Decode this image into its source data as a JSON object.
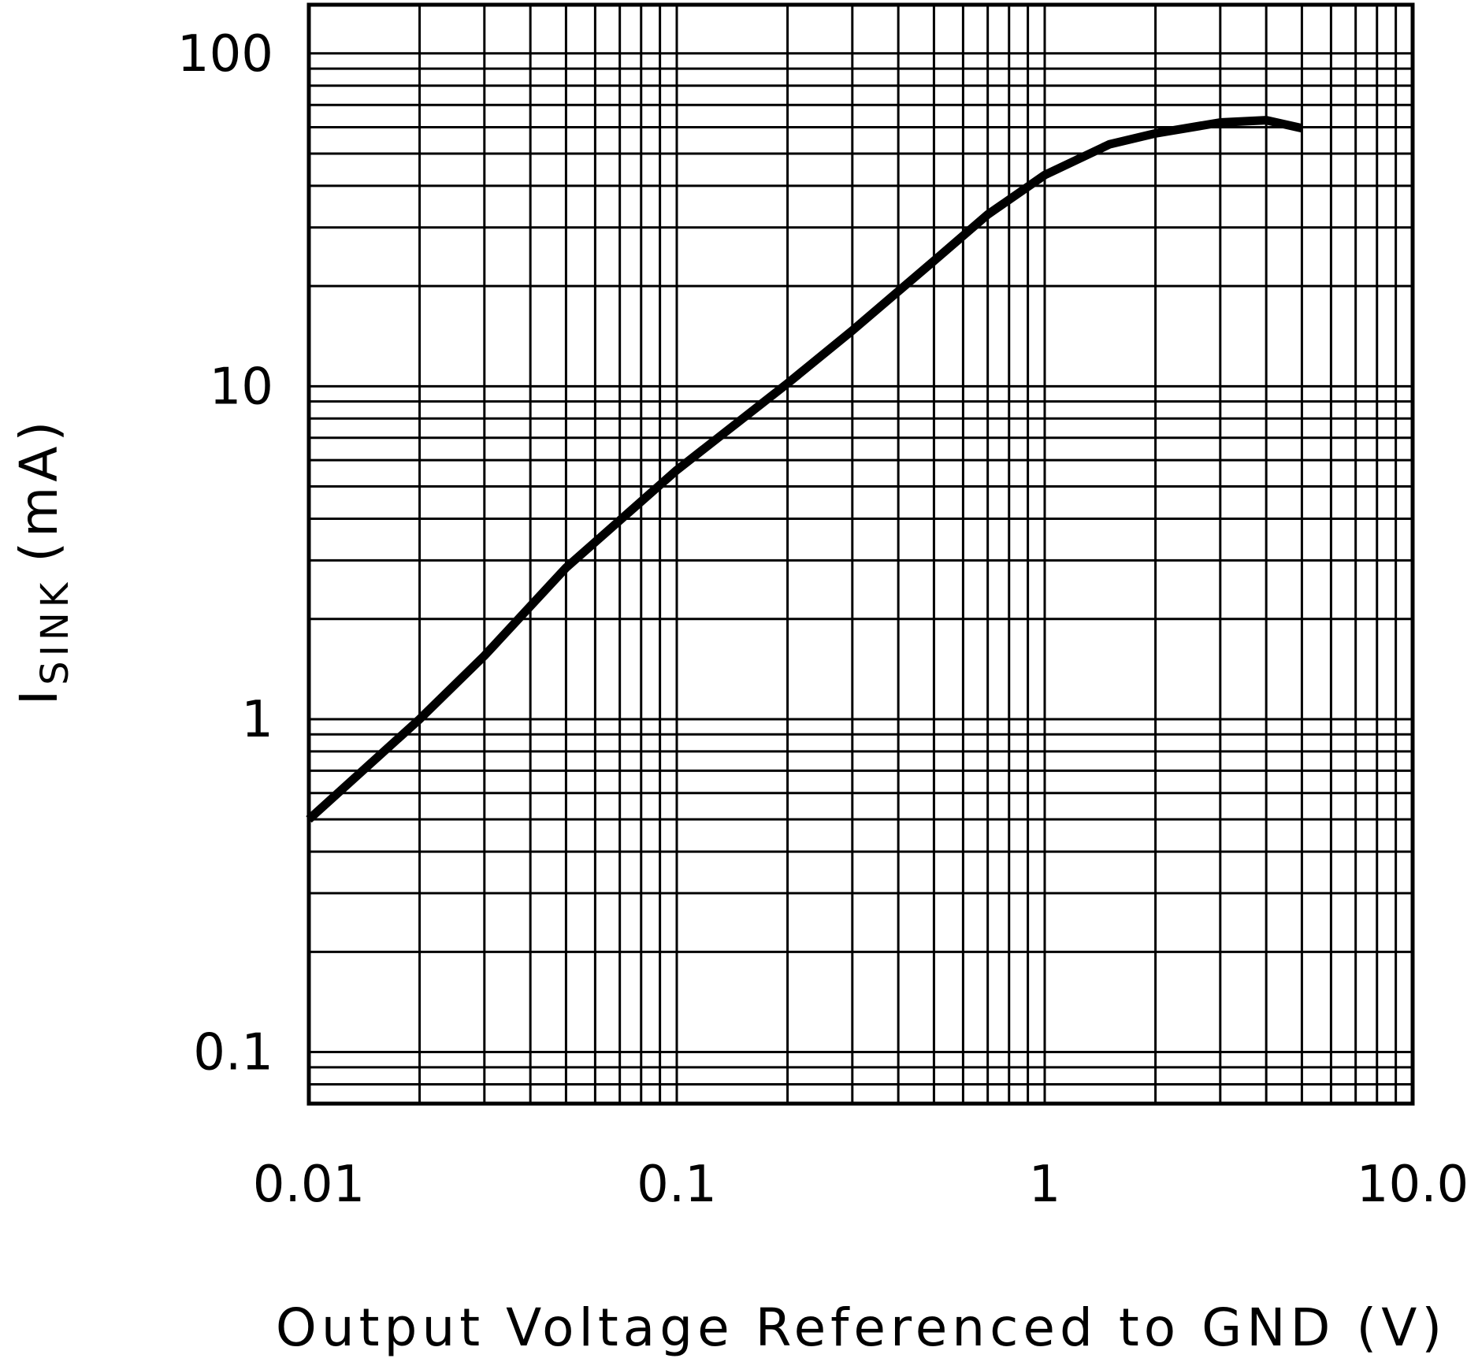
{
  "chart_data": {
    "type": "line",
    "xlabel": "Output Voltage Referenced to GND (V)",
    "ylabel": [
      "I",
      "SINK",
      "(mA)"
    ],
    "x_log": true,
    "y_log": true,
    "grid": true,
    "xlim": [
      0.01,
      10
    ],
    "ylim": [
      0.07,
      140
    ],
    "xticks": [
      0.01,
      0.1,
      1,
      {
        "value": 10,
        "label": "10.0"
      }
    ],
    "yticks": [
      0.1,
      1,
      10,
      100
    ],
    "series": [
      {
        "name": null,
        "color": "#000000",
        "x": [
          0.01,
          0.02,
          0.03,
          0.05,
          0.1,
          0.2,
          0.3,
          0.5,
          0.7,
          1,
          1.5,
          2,
          3,
          4,
          5
        ],
        "values": [
          0.5,
          1.0,
          1.55,
          2.85,
          5.6,
          10.2,
          14.7,
          23.8,
          32.8,
          43.1,
          53.3,
          57.5,
          62,
          63,
          59.6
        ]
      }
    ]
  }
}
